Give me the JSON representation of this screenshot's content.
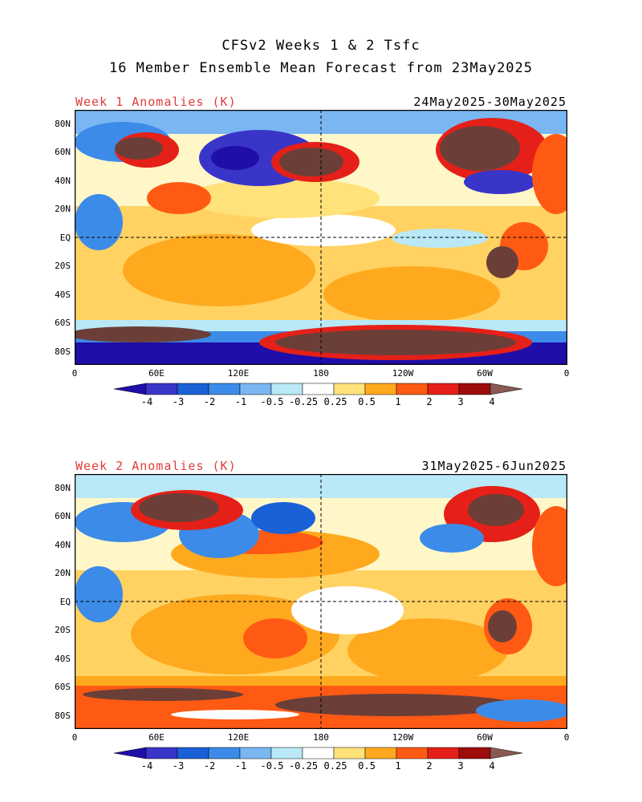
{
  "header": {
    "line1": "CFSv2 Weeks 1 & 2 Tsfc",
    "line2": "16 Member Ensemble Mean Forecast from 23May2025"
  },
  "panels": [
    {
      "title": "Week 1 Anomalies (K)",
      "dates": "24May2025-30May2025"
    },
    {
      "title": "Week 2 Anomalies (K)",
      "dates": "31May2025-6Jun2025"
    }
  ],
  "map_axes": {
    "lat_labels": [
      "80N",
      "60N",
      "40N",
      "20N",
      "EQ",
      "20S",
      "40S",
      "60S",
      "80S"
    ],
    "lon_labels": [
      "0",
      "60E",
      "120E",
      "180",
      "120W",
      "60W",
      "0"
    ]
  },
  "colorbar": {
    "labels": [
      "-4",
      "-3",
      "-2",
      "-1",
      "-0.5",
      "-0.25",
      "0.25",
      "0.5",
      "1",
      "2",
      "3",
      "4"
    ],
    "colors": [
      "#1f0ea8",
      "#3a35c9",
      "#1a60d6",
      "#3c8be8",
      "#7ab6f2",
      "#b9e8f7",
      "#ffffff",
      "#ffe27a",
      "#ffa91e",
      "#ff5a14",
      "#e52018",
      "#9e0c0c",
      "#8a5a52"
    ]
  }
}
